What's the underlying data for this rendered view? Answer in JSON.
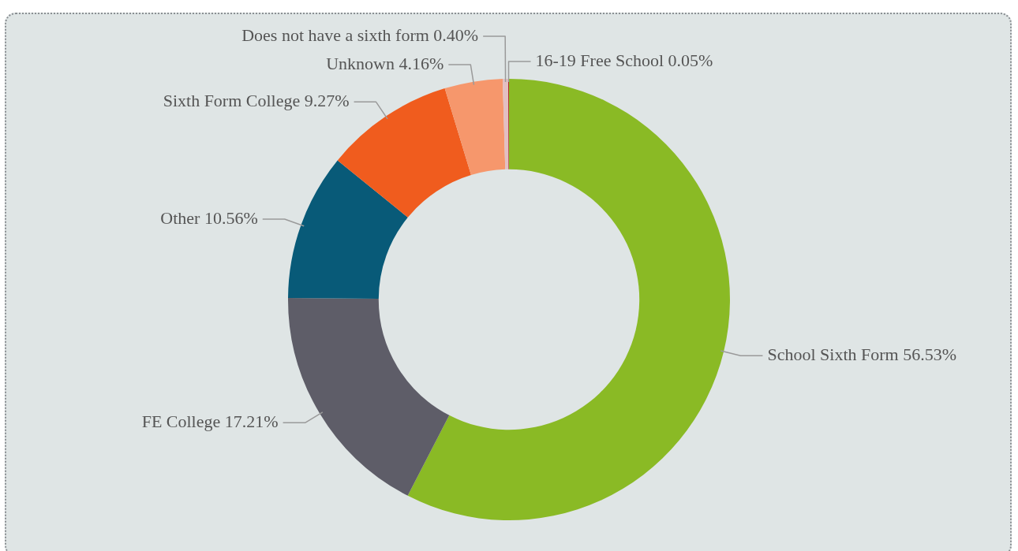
{
  "chart_data": {
    "type": "donut",
    "categories": [
      "School Sixth Form",
      "FE College",
      "Other",
      "Sixth Form College",
      "Unknown",
      "Does not have a sixth form",
      "16-19 Free School"
    ],
    "values": [
      56.53,
      17.21,
      10.56,
      9.27,
      4.16,
      0.4,
      0.05
    ],
    "value_labels": [
      "56.53%",
      "17.21%",
      "10.56%",
      "9.27%",
      "4.16%",
      "0.40%",
      "0.05%"
    ],
    "colors": [
      "#8aba25",
      "#5e5d68",
      "#085a78",
      "#f05c1e",
      "#f6976c",
      "#e3bfc2",
      "#a50f0b"
    ],
    "legend": false
  }
}
